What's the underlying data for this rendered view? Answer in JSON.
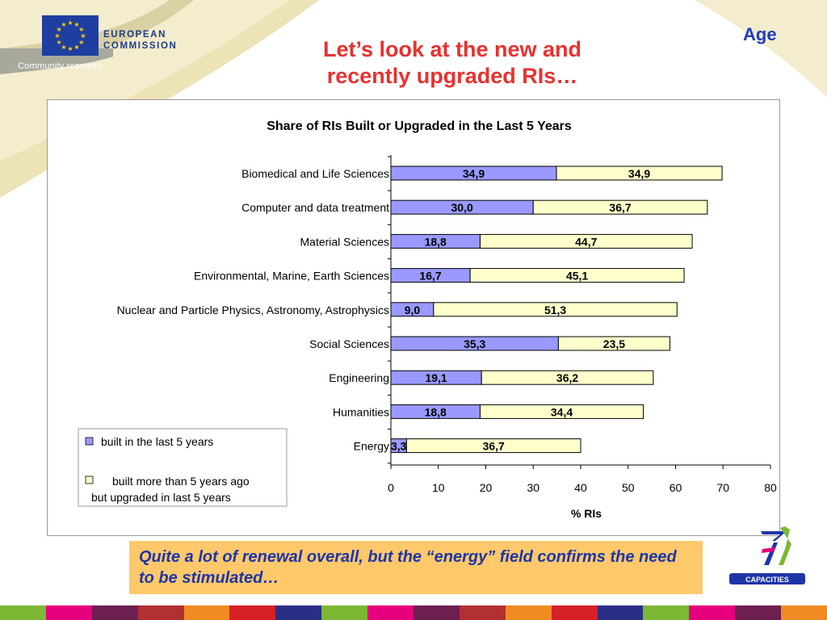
{
  "header": {
    "eu_line1": "EUROPEAN",
    "eu_line2": "COMMISSION",
    "community": "Community research",
    "title_line1": "Let’s look at the new and",
    "title_line2": "recently upgraded RIs…",
    "tag": "Age"
  },
  "chart_data": {
    "type": "bar",
    "orientation": "horizontal",
    "stacked": true,
    "title": "Share of RIs Built or Upgraded in the Last 5 Years",
    "xlabel": "% RIs",
    "ylabel": "",
    "xlim": [
      0,
      80
    ],
    "xticks": [
      "0",
      "10",
      "20",
      "30",
      "40",
      "50",
      "60",
      "70",
      "80"
    ],
    "grid": false,
    "legend_position": "bottom-left",
    "categories": [
      "Biomedical and Life Sciences",
      "Computer and data treatment",
      "Material Sciences",
      "Environmental, Marine, Earth Sciences",
      "Nuclear and Particle Physics, Astronomy, Astrophysics",
      "Social Sciences",
      "Engineering",
      "Humanities",
      "Energy"
    ],
    "series": [
      {
        "name": "built in the last 5 years",
        "color": "#9999ff",
        "values": [
          34.9,
          30.0,
          18.8,
          16.7,
          9.0,
          35.3,
          19.1,
          18.8,
          3.3
        ],
        "labels": [
          "34,9",
          "30,0",
          "18,8",
          "16,7",
          "9,0",
          "35,3",
          "19,1",
          "18,8",
          "3,3"
        ]
      },
      {
        "name": "built more than 5 years ago but upgraded in last 5 years",
        "name_line1": "built more than 5 years ago",
        "name_line2": "but upgraded in last 5 years",
        "color": "#ffffcc",
        "values": [
          34.9,
          36.7,
          44.7,
          45.1,
          51.3,
          23.5,
          36.2,
          34.4,
          36.7
        ],
        "labels": [
          "34,9",
          "36,7",
          "44,7",
          "45,1",
          "51,3",
          "23,5",
          "36,2",
          "34,4",
          "36,7"
        ]
      }
    ]
  },
  "callout": {
    "text": "Quite a lot of renewal overall, but the “energy” field confirms the need to be stimulated…"
  },
  "logos": {
    "capacities": "CAPACITIES"
  },
  "colors": {
    "title_red": "#e8312f",
    "tag_blue": "#1d3ebd",
    "callout_bg": "#fec86b",
    "callout_text": "#1e35a8",
    "stripes": [
      "#7bb834",
      "#e5007d",
      "#6d1f4f",
      "#b22f32",
      "#f08a22",
      "#d71f26",
      "#2a2f86",
      "#7bb834",
      "#e5007d",
      "#6d1f4f",
      "#b22f32",
      "#f08a22",
      "#d71f26",
      "#2a2f86",
      "#7bb834",
      "#e5007d",
      "#6d1f4f",
      "#f08a22"
    ]
  }
}
